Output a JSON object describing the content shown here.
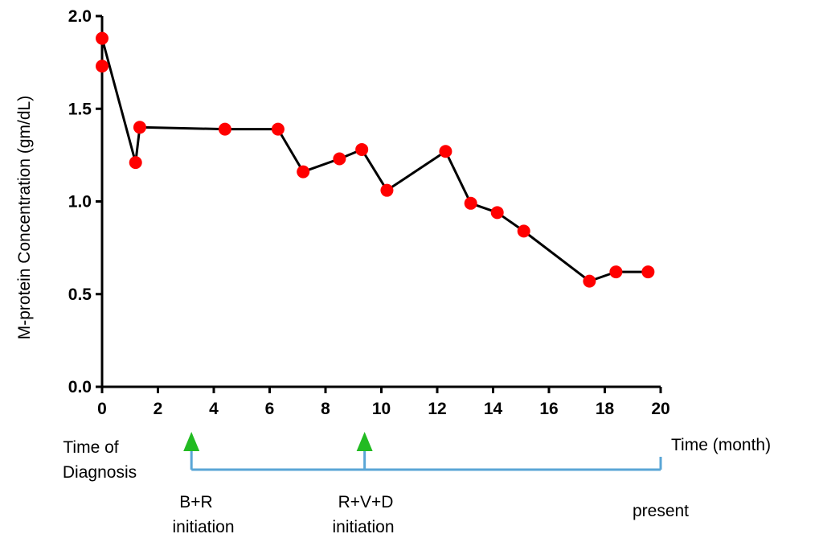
{
  "chart_data": {
    "type": "line",
    "title": "",
    "xlabel": "Time (month)",
    "ylabel": "M-protein Concentration (gm/dL)",
    "xlim": [
      0,
      20
    ],
    "ylim": [
      0.0,
      2.0
    ],
    "x_ticks": [
      "0",
      "2",
      "4",
      "6",
      "8",
      "10",
      "12",
      "14",
      "16",
      "18",
      "20"
    ],
    "y_ticks": [
      "0.0",
      "0.5",
      "1.0",
      "1.5",
      "2.0"
    ],
    "grid": false,
    "series": [
      {
        "x": [
          0,
          0,
          1.2,
          1.35,
          4.4,
          6.3,
          7.2,
          8.5,
          9.3,
          10.2,
          12.3,
          13.2,
          14.15,
          15.1,
          17.45,
          18.4,
          19.55
        ],
        "y": [
          1.73,
          1.88,
          1.21,
          1.4,
          1.39,
          1.39,
          1.16,
          1.23,
          1.28,
          1.06,
          1.27,
          0.99,
          0.94,
          0.84,
          0.57,
          0.62,
          0.62
        ]
      }
    ],
    "marker_color": "#ff0000",
    "line_color": "#000000",
    "annotations": {
      "diagnosis_label_line1": "Time of",
      "diagnosis_label_line2": "Diagnosis",
      "treatments": [
        {
          "x": 3.2,
          "label_line1": "B+R",
          "label_line2": "initiation"
        },
        {
          "x": 9.4,
          "label_line1": "R+V+D",
          "label_line2": "initiation"
        }
      ],
      "end_x": 20,
      "end_label": "present",
      "arrow_color": "#22bb22",
      "timeline_color": "#5aa6d6"
    }
  }
}
